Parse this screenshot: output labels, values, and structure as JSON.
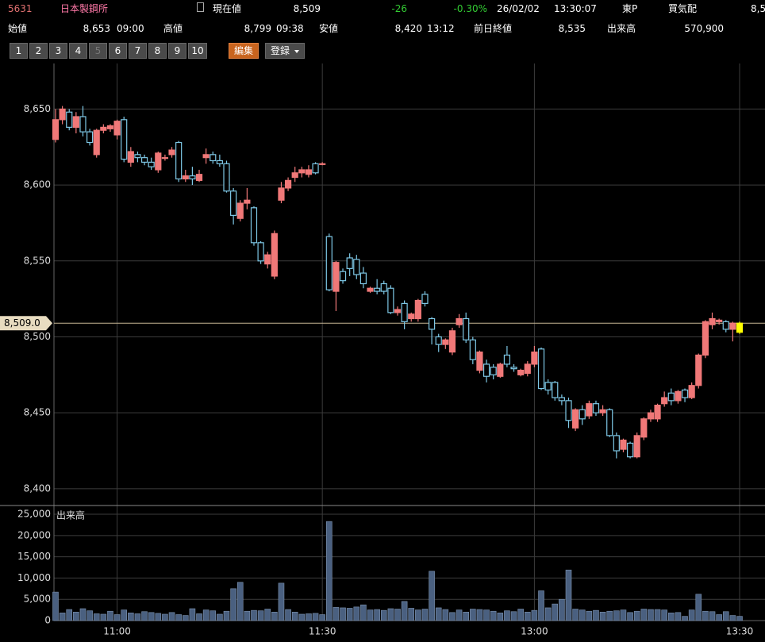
{
  "header": {
    "code": "5631",
    "name": "日本製鋼所",
    "current_label": "現在値",
    "current": "8,509",
    "change": "-26",
    "change_pct": "-0.30%",
    "date": "26/02/02",
    "time": "13:30:07",
    "market": "東P",
    "bid_label": "買気配",
    "bid": "8,5"
  },
  "summary": [
    {
      "label": "始値",
      "value": "8,653",
      "time": "09:00"
    },
    {
      "label": "高値",
      "value": "8,799",
      "time": "09:38"
    },
    {
      "label": "安値",
      "value": "8,420",
      "time": "13:12"
    },
    {
      "label": "前日終値",
      "value": "8,535"
    },
    {
      "label": "出来高",
      "value": "570,900"
    }
  ],
  "buttons": [
    "1",
    "2",
    "3",
    "4",
    "5",
    "6",
    "7",
    "8",
    "9",
    "10"
  ],
  "edit": "編集",
  "register": "登録",
  "chart_data": [
    {
      "type": "candlestick",
      "categories": [
        null,
        null,
        null,
        null,
        null,
        null,
        null,
        null,
        null,
        "11:00",
        null,
        null,
        null,
        null,
        null,
        null,
        null,
        null,
        null,
        null,
        null,
        null,
        null,
        null,
        null,
        null,
        null,
        null,
        null,
        null,
        null,
        null,
        null,
        null,
        null,
        null,
        null,
        null,
        null,
        "11:30",
        null,
        null,
        null,
        null,
        null,
        null,
        null,
        null,
        null,
        null,
        null,
        null,
        null,
        null,
        null,
        null,
        null,
        null,
        null,
        null,
        null,
        null,
        null,
        null,
        null,
        null,
        null,
        null,
        null,
        null,
        "13:00",
        null,
        null,
        null,
        null,
        null,
        null,
        null,
        null,
        null,
        null,
        null,
        null,
        null,
        null,
        null,
        null,
        null,
        null,
        null,
        null,
        null,
        null,
        null,
        null,
        null,
        null,
        null,
        null,
        null,
        "13:30"
      ],
      "open": [
        8630,
        8643,
        8648,
        8638,
        8645,
        8635,
        8620,
        8636,
        8637,
        8633,
        8643,
        8615,
        8620,
        8618,
        8615,
        8610,
        8618,
        8620,
        8628,
        8604,
        8606,
        8603,
        8618,
        8620,
        8616,
        8614,
        8596,
        8578,
        8588,
        8585,
        8562,
        8548,
        8540,
        8590,
        8598,
        8605,
        8608,
        8607,
        8614,
        8614,
        8566,
        8530,
        8543,
        8552,
        8551,
        8542,
        8530,
        8532,
        8535,
        8532,
        8516,
        8522,
        8512,
        8512,
        8528,
        8512,
        8500,
        8495,
        8490,
        8508,
        8512,
        8498,
        8478,
        8482,
        8480,
        8474,
        8488,
        8480,
        8475,
        8476,
        8482,
        8492,
        8470,
        8470,
        8460,
        8458,
        8440,
        8452,
        8448,
        8456,
        8450,
        8452,
        8435,
        8426,
        8430,
        8421,
        8434,
        8446,
        8446,
        8456,
        8463,
        8458,
        8465,
        8460,
        8468,
        8488,
        8508,
        8510,
        8510,
        8505,
        8503
      ],
      "high": [
        8650,
        8652,
        8650,
        8648,
        8652,
        8637,
        8637,
        8640,
        8640,
        8643,
        8645,
        8625,
        8622,
        8620,
        8618,
        8622,
        8620,
        8625,
        8629,
        8610,
        8612,
        8610,
        8624,
        8622,
        8620,
        8616,
        8598,
        8590,
        8598,
        8586,
        8563,
        8556,
        8570,
        8602,
        8605,
        8612,
        8612,
        8613,
        8615,
        8615,
        8568,
        8550,
        8545,
        8555,
        8554,
        8546,
        8533,
        8538,
        8537,
        8534,
        8520,
        8524,
        8516,
        8525,
        8530,
        8513,
        8502,
        8499,
        8506,
        8515,
        8516,
        8500,
        8491,
        8485,
        8482,
        8483,
        8494,
        8482,
        8479,
        8484,
        8494,
        8493,
        8472,
        8471,
        8462,
        8460,
        8453,
        8455,
        8458,
        8458,
        8455,
        8453,
        8437,
        8433,
        8431,
        8437,
        8447,
        8452,
        8456,
        8464,
        8466,
        8465,
        8466,
        8470,
        8489,
        8511,
        8516,
        8512,
        8511,
        8510,
        8510
      ],
      "low": [
        8628,
        8640,
        8636,
        8634,
        8632,
        8626,
        8618,
        8634,
        8635,
        8630,
        8615,
        8612,
        8615,
        8613,
        8610,
        8608,
        8616,
        8618,
        8602,
        8602,
        8600,
        8602,
        8614,
        8614,
        8612,
        8595,
        8574,
        8576,
        8584,
        8560,
        8548,
        8545,
        8538,
        8588,
        8596,
        8602,
        8605,
        8605,
        8607,
        8613,
        8530,
        8517,
        8535,
        8540,
        8538,
        8532,
        8529,
        8528,
        8528,
        8515,
        8514,
        8505,
        8510,
        8510,
        8520,
        8495,
        8490,
        8492,
        8488,
        8506,
        8496,
        8482,
        8476,
        8470,
        8472,
        8473,
        8480,
        8477,
        8474,
        8474,
        8480,
        8465,
        8462,
        8458,
        8455,
        8440,
        8438,
        8442,
        8446,
        8448,
        8448,
        8434,
        8420,
        8424,
        8420,
        8420,
        8432,
        8444,
        8444,
        8454,
        8455,
        8456,
        8457,
        8459,
        8466,
        8486,
        8505,
        8508,
        8503,
        8497,
        8502
      ],
      "close": [
        8643,
        8650,
        8638,
        8645,
        8635,
        8628,
        8636,
        8638,
        8639,
        8642,
        8617,
        8622,
        8618,
        8615,
        8612,
        8621,
        8618,
        8623,
        8604,
        8606,
        8604,
        8607,
        8620,
        8616,
        8614,
        8596,
        8580,
        8588,
        8590,
        8562,
        8550,
        8554,
        8568,
        8598,
        8603,
        8608,
        8610,
        8610,
        8608,
        8614,
        8531,
        8549,
        8537,
        8545,
        8541,
        8535,
        8532,
        8530,
        8530,
        8516,
        8518,
        8510,
        8515,
        8524,
        8522,
        8505,
        8495,
        8498,
        8504,
        8512,
        8498,
        8485,
        8490,
        8474,
        8475,
        8482,
        8482,
        8479,
        8478,
        8482,
        8490,
        8466,
        8465,
        8460,
        8458,
        8445,
        8452,
        8446,
        8456,
        8450,
        8452,
        8435,
        8425,
        8432,
        8421,
        8435,
        8446,
        8450,
        8455,
        8460,
        8458,
        8464,
        8460,
        8468,
        8488,
        8510,
        8512,
        8511,
        8505,
        8509,
        8509
      ],
      "up_color": "#f07878",
      "down_color": "#7ec8e6",
      "last_color": "#ffff00",
      "ylim": [
        8390,
        8680
      ],
      "yticks": [
        {
          "value": 8650,
          "label": "8,650"
        },
        {
          "value": 8600,
          "label": "8,600"
        },
        {
          "value": 8550,
          "label": "8,550"
        },
        {
          "value": 8500,
          "label": "8,500"
        },
        {
          "value": 8450,
          "label": "8,450"
        },
        {
          "value": 8400,
          "label": "8,400"
        }
      ],
      "last_price": {
        "value": 8509,
        "label": "8,509.0"
      },
      "grid": true
    },
    {
      "type": "bar",
      "title": "出来高",
      "color": "#4a6080",
      "values": [
        6700,
        1800,
        2600,
        2000,
        2800,
        2300,
        1600,
        1500,
        2200,
        1400,
        2500,
        1800,
        1600,
        2100,
        1900,
        1700,
        1500,
        1900,
        1400,
        1200,
        2800,
        1600,
        2500,
        2300,
        1500,
        2200,
        7500,
        9000,
        2200,
        2400,
        2300,
        2700,
        2000,
        8800,
        2600,
        2000,
        1500,
        1600,
        1700,
        1400,
        23300,
        3100,
        3000,
        2900,
        3200,
        3700,
        2500,
        2600,
        2400,
        2800,
        2700,
        4500,
        2900,
        2500,
        2700,
        11600,
        3000,
        2600,
        1900,
        2500,
        2000,
        2700,
        2600,
        2500,
        2200,
        1800,
        2300,
        2100,
        2700,
        2000,
        2400,
        7000,
        3000,
        3900,
        5000,
        11900,
        2700,
        2500,
        2200,
        2400,
        2000,
        2200,
        2300,
        2500,
        1900,
        2200,
        2700,
        2600,
        2600,
        2500,
        1800,
        1900,
        1000,
        2500,
        6200,
        2200,
        2100,
        1400,
        2100,
        1200,
        1000
      ],
      "ylim": [
        0,
        26500
      ],
      "yticks": [
        {
          "value": 25000,
          "label": "25,000"
        },
        {
          "value": 20000,
          "label": "20,000"
        },
        {
          "value": 15000,
          "label": "15,000"
        },
        {
          "value": 10000,
          "label": "10,000"
        },
        {
          "value": 5000,
          "label": "5,000"
        },
        0
      ],
      "grid": true
    }
  ]
}
